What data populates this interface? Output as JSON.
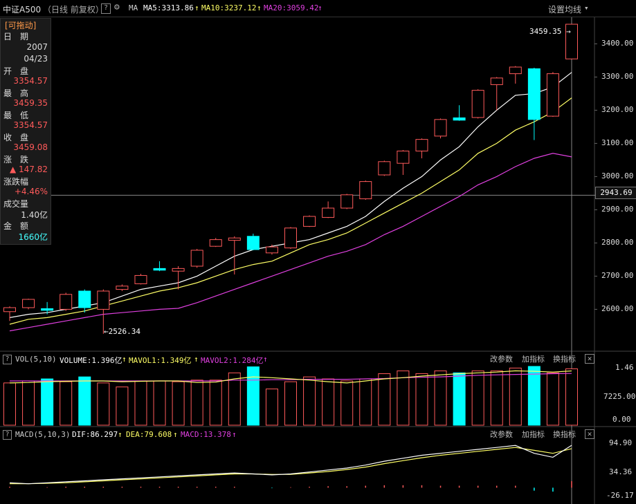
{
  "header": {
    "symbol": "中证A500",
    "mode": "（日线 前复权）",
    "help": "?",
    "ma_label": "MA",
    "ma5": "MA5:3313.86",
    "ma10": "MA10:3237.12",
    "ma20": "MA20:3059.42",
    "settings": "设置均线"
  },
  "info_panel": {
    "drag_label": "[可拖动]",
    "date_label": "日　期",
    "date_year": "2007",
    "date_md": "04/23",
    "open_label": "开　盘",
    "open_value": "3354.57",
    "high_label": "最　高",
    "high_value": "3459.35",
    "low_label": "最　低",
    "low_value": "3354.57",
    "close_label": "收　盘",
    "close_value": "3459.08",
    "change_label": "涨　跌",
    "change_value": "▲ 147.82",
    "pct_label": "涨跌幅",
    "pct_value": "+4.46%",
    "volume_label": "成交量",
    "volume_value": "1.40亿",
    "amount_label": "金　额",
    "amount_value": "1660亿"
  },
  "price_axis": {
    "ticks": [
      "3400.00",
      "3300.00",
      "3200.00",
      "3100.00",
      "3000.00",
      "2900.00",
      "2800.00",
      "2700.00",
      "2600.00"
    ],
    "crosshair_value": "2943.69"
  },
  "annotations": {
    "high": "3459.35",
    "low": "2526.34"
  },
  "volume_panel": {
    "title": "VOL(5,10)",
    "volume": "VOLUME:1.396亿",
    "mavol1": "MAVOL1:1.349亿",
    "mavol2": "MAVOL2:1.284亿",
    "btn_params": "改参数",
    "btn_add": "加指标",
    "btn_switch": "换指标",
    "ticks": [
      "1.46",
      "7225.00",
      "0.00"
    ]
  },
  "macd_panel": {
    "title": "MACD(5,10,3)",
    "dif": "DIF:86.297",
    "dea": "DEA:79.608",
    "macd": "MACD:13.378",
    "btn_params": "改参数",
    "btn_add": "加指标",
    "btn_switch": "换指标",
    "ticks": [
      "94.90",
      "34.36",
      "-26.17"
    ]
  },
  "colors": {
    "up": "#ff5a5a",
    "down": "#00ffff",
    "ma5": "#ffffff",
    "ma10": "#ffff66",
    "ma20": "#e040e0"
  },
  "chart_data": {
    "type": "candlestick",
    "candles": [
      {
        "o": 2593,
        "c": 2605,
        "h": 2609,
        "l": 2565
      },
      {
        "o": 2605,
        "c": 2630,
        "h": 2632,
        "l": 2600
      },
      {
        "o": 2602,
        "c": 2597,
        "h": 2622,
        "l": 2585
      },
      {
        "o": 2600,
        "c": 2645,
        "h": 2650,
        "l": 2595
      },
      {
        "o": 2655,
        "c": 2605,
        "h": 2660,
        "l": 2590
      },
      {
        "o": 2600,
        "c": 2655,
        "h": 2660,
        "l": 2526.34
      },
      {
        "o": 2660,
        "c": 2670,
        "h": 2675,
        "l": 2655
      },
      {
        "o": 2677,
        "c": 2702,
        "h": 2707,
        "l": 2675
      },
      {
        "o": 2723,
        "c": 2718,
        "h": 2745,
        "l": 2715
      },
      {
        "o": 2715,
        "c": 2723,
        "h": 2730,
        "l": 2660
      },
      {
        "o": 2730,
        "c": 2778,
        "h": 2782,
        "l": 2725
      },
      {
        "o": 2790,
        "c": 2810,
        "h": 2815,
        "l": 2788
      },
      {
        "o": 2808,
        "c": 2815,
        "h": 2820,
        "l": 2705
      },
      {
        "o": 2820,
        "c": 2780,
        "h": 2828,
        "l": 2778
      },
      {
        "o": 2770,
        "c": 2788,
        "h": 2795,
        "l": 2765
      },
      {
        "o": 2785,
        "c": 2845,
        "h": 2848,
        "l": 2782
      },
      {
        "o": 2850,
        "c": 2880,
        "h": 2883,
        "l": 2848
      },
      {
        "o": 2877,
        "c": 2905,
        "h": 2925,
        "l": 2875
      },
      {
        "o": 2905,
        "c": 2945,
        "h": 2948,
        "l": 2902
      },
      {
        "o": 2933,
        "c": 2985,
        "h": 2988,
        "l": 2930
      },
      {
        "o": 3005,
        "c": 3045,
        "h": 3048,
        "l": 3002
      },
      {
        "o": 3040,
        "c": 3077,
        "h": 3080,
        "l": 3005
      },
      {
        "o": 3077,
        "c": 3112,
        "h": 3115,
        "l": 3055
      },
      {
        "o": 3122,
        "c": 3172,
        "h": 3175,
        "l": 3115
      },
      {
        "o": 3177,
        "c": 3170,
        "h": 3215,
        "l": 3168
      },
      {
        "o": 3178,
        "c": 3260,
        "h": 3263,
        "l": 3175
      },
      {
        "o": 3277,
        "c": 3297,
        "h": 3300,
        "l": 3200
      },
      {
        "o": 3310,
        "c": 3330,
        "h": 3333,
        "l": 3280
      },
      {
        "o": 3325,
        "c": 3172,
        "h": 3328,
        "l": 3110
      },
      {
        "o": 3182,
        "c": 3310,
        "h": 3315,
        "l": 3180
      },
      {
        "o": 3354.57,
        "c": 3459.08,
        "h": 3459.35,
        "l": 3354.57
      }
    ],
    "ma5": [
      2575,
      2585,
      2590,
      2600,
      2610,
      2620,
      2640,
      2660,
      2670,
      2680,
      2700,
      2730,
      2760,
      2780,
      2790,
      2800,
      2810,
      2830,
      2850,
      2880,
      2925,
      2965,
      3000,
      3050,
      3090,
      3150,
      3200,
      3245,
      3250,
      3270,
      3313.86
    ],
    "ma10": [
      2555,
      2570,
      2575,
      2585,
      2595,
      2610,
      2625,
      2640,
      2655,
      2665,
      2680,
      2700,
      2720,
      2735,
      2745,
      2770,
      2795,
      2810,
      2830,
      2860,
      2890,
      2920,
      2950,
      2985,
      3020,
      3070,
      3100,
      3140,
      3165,
      3195,
      3237.12
    ],
    "ma20": [
      2535,
      2545,
      2555,
      2565,
      2575,
      2585,
      2590,
      2595,
      2600,
      2603,
      2620,
      2640,
      2660,
      2680,
      2700,
      2720,
      2740,
      2760,
      2775,
      2795,
      2825,
      2850,
      2880,
      2910,
      2940,
      2975,
      3000,
      3030,
      3055,
      3070,
      3059.42
    ],
    "volume": [
      1.05,
      1.1,
      1.15,
      1.08,
      1.2,
      1.05,
      0.95,
      1.1,
      1.1,
      1.08,
      1.12,
      1.12,
      1.3,
      1.45,
      0.9,
      1.08,
      1.2,
      1.15,
      1.1,
      1.15,
      1.28,
      1.35,
      1.28,
      1.35,
      1.3,
      1.35,
      1.35,
      1.42,
      1.46,
      1.3,
      1.4
    ],
    "volume_down": [
      false,
      false,
      true,
      false,
      true,
      false,
      false,
      false,
      false,
      false,
      false,
      false,
      false,
      true,
      false,
      false,
      false,
      false,
      false,
      false,
      false,
      false,
      false,
      false,
      true,
      false,
      false,
      false,
      true,
      false,
      false
    ],
    "mavol1": [
      1.05,
      1.06,
      1.08,
      1.09,
      1.1,
      1.1,
      1.08,
      1.09,
      1.1,
      1.1,
      1.06,
      1.07,
      1.15,
      1.2,
      1.18,
      1.15,
      1.12,
      1.08,
      1.05,
      1.1,
      1.15,
      1.18,
      1.22,
      1.25,
      1.28,
      1.3,
      1.32,
      1.35,
      1.34,
      1.32,
      1.349
    ],
    "mavol2": [
      1.1,
      1.1,
      1.1,
      1.1,
      1.1,
      1.1,
      1.1,
      1.1,
      1.1,
      1.1,
      1.1,
      1.1,
      1.12,
      1.12,
      1.13,
      1.13,
      1.14,
      1.14,
      1.14,
      1.15,
      1.16,
      1.18,
      1.19,
      1.2,
      1.22,
      1.24,
      1.25,
      1.26,
      1.27,
      1.28,
      1.284
    ],
    "dif": [
      10,
      8,
      10,
      12,
      14,
      16,
      18,
      20,
      22,
      24,
      26,
      28,
      30,
      28,
      26,
      28,
      32,
      36,
      40,
      46,
      54,
      60,
      66,
      70,
      74,
      78,
      82,
      86,
      70,
      62,
      86.297
    ],
    "dea": [
      8,
      8,
      9,
      10,
      12,
      14,
      16,
      18,
      20,
      22,
      24,
      26,
      28,
      28,
      27,
      27,
      30,
      33,
      37,
      42,
      49,
      55,
      61,
      66,
      70,
      74,
      78,
      82,
      76,
      70,
      79.608
    ],
    "macd": [
      2,
      0,
      1,
      2,
      2,
      2,
      2,
      2,
      2,
      2,
      2,
      2,
      2,
      0,
      -1,
      1,
      2,
      3,
      3,
      4,
      5,
      5,
      5,
      4,
      4,
      4,
      4,
      4,
      -6,
      -8,
      13.378
    ],
    "price_range": [
      2480,
      3480
    ],
    "macd_range": [
      -26.17,
      94.9
    ],
    "volume_range": [
      0,
      1.46
    ]
  }
}
